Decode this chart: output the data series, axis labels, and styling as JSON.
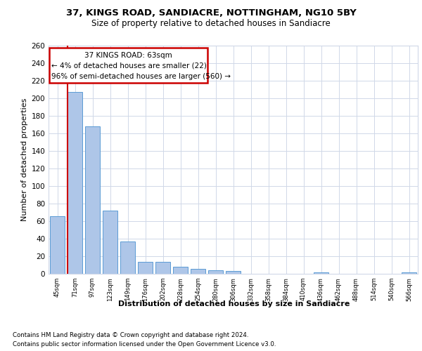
{
  "title1": "37, KINGS ROAD, SANDIACRE, NOTTINGHAM, NG10 5BY",
  "title2": "Size of property relative to detached houses in Sandiacre",
  "xlabel": "Distribution of detached houses by size in Sandiacre",
  "ylabel": "Number of detached properties",
  "categories": [
    "45sqm",
    "71sqm",
    "97sqm",
    "123sqm",
    "149sqm",
    "176sqm",
    "202sqm",
    "228sqm",
    "254sqm",
    "280sqm",
    "306sqm",
    "332sqm",
    "358sqm",
    "384sqm",
    "410sqm",
    "436sqm",
    "462sqm",
    "488sqm",
    "514sqm",
    "540sqm",
    "566sqm"
  ],
  "values": [
    66,
    207,
    168,
    72,
    37,
    14,
    14,
    8,
    6,
    4,
    3,
    0,
    0,
    0,
    0,
    2,
    0,
    0,
    0,
    0,
    2
  ],
  "bar_color": "#aec6e8",
  "bar_edge_color": "#5b9bd5",
  "highlight_color": "#cc0000",
  "annotation_title": "37 KINGS ROAD: 63sqm",
  "annotation_line1": "← 4% of detached houses are smaller (22)",
  "annotation_line2": "96% of semi-detached houses are larger (560) →",
  "annotation_box_color": "#ffffff",
  "annotation_box_edge": "#cc0000",
  "ylim": [
    0,
    260
  ],
  "yticks": [
    0,
    20,
    40,
    60,
    80,
    100,
    120,
    140,
    160,
    180,
    200,
    220,
    240,
    260
  ],
  "footer1": "Contains HM Land Registry data © Crown copyright and database right 2024.",
  "footer2": "Contains public sector information licensed under the Open Government Licence v3.0.",
  "bg_color": "#ffffff",
  "grid_color": "#d0d8e8"
}
